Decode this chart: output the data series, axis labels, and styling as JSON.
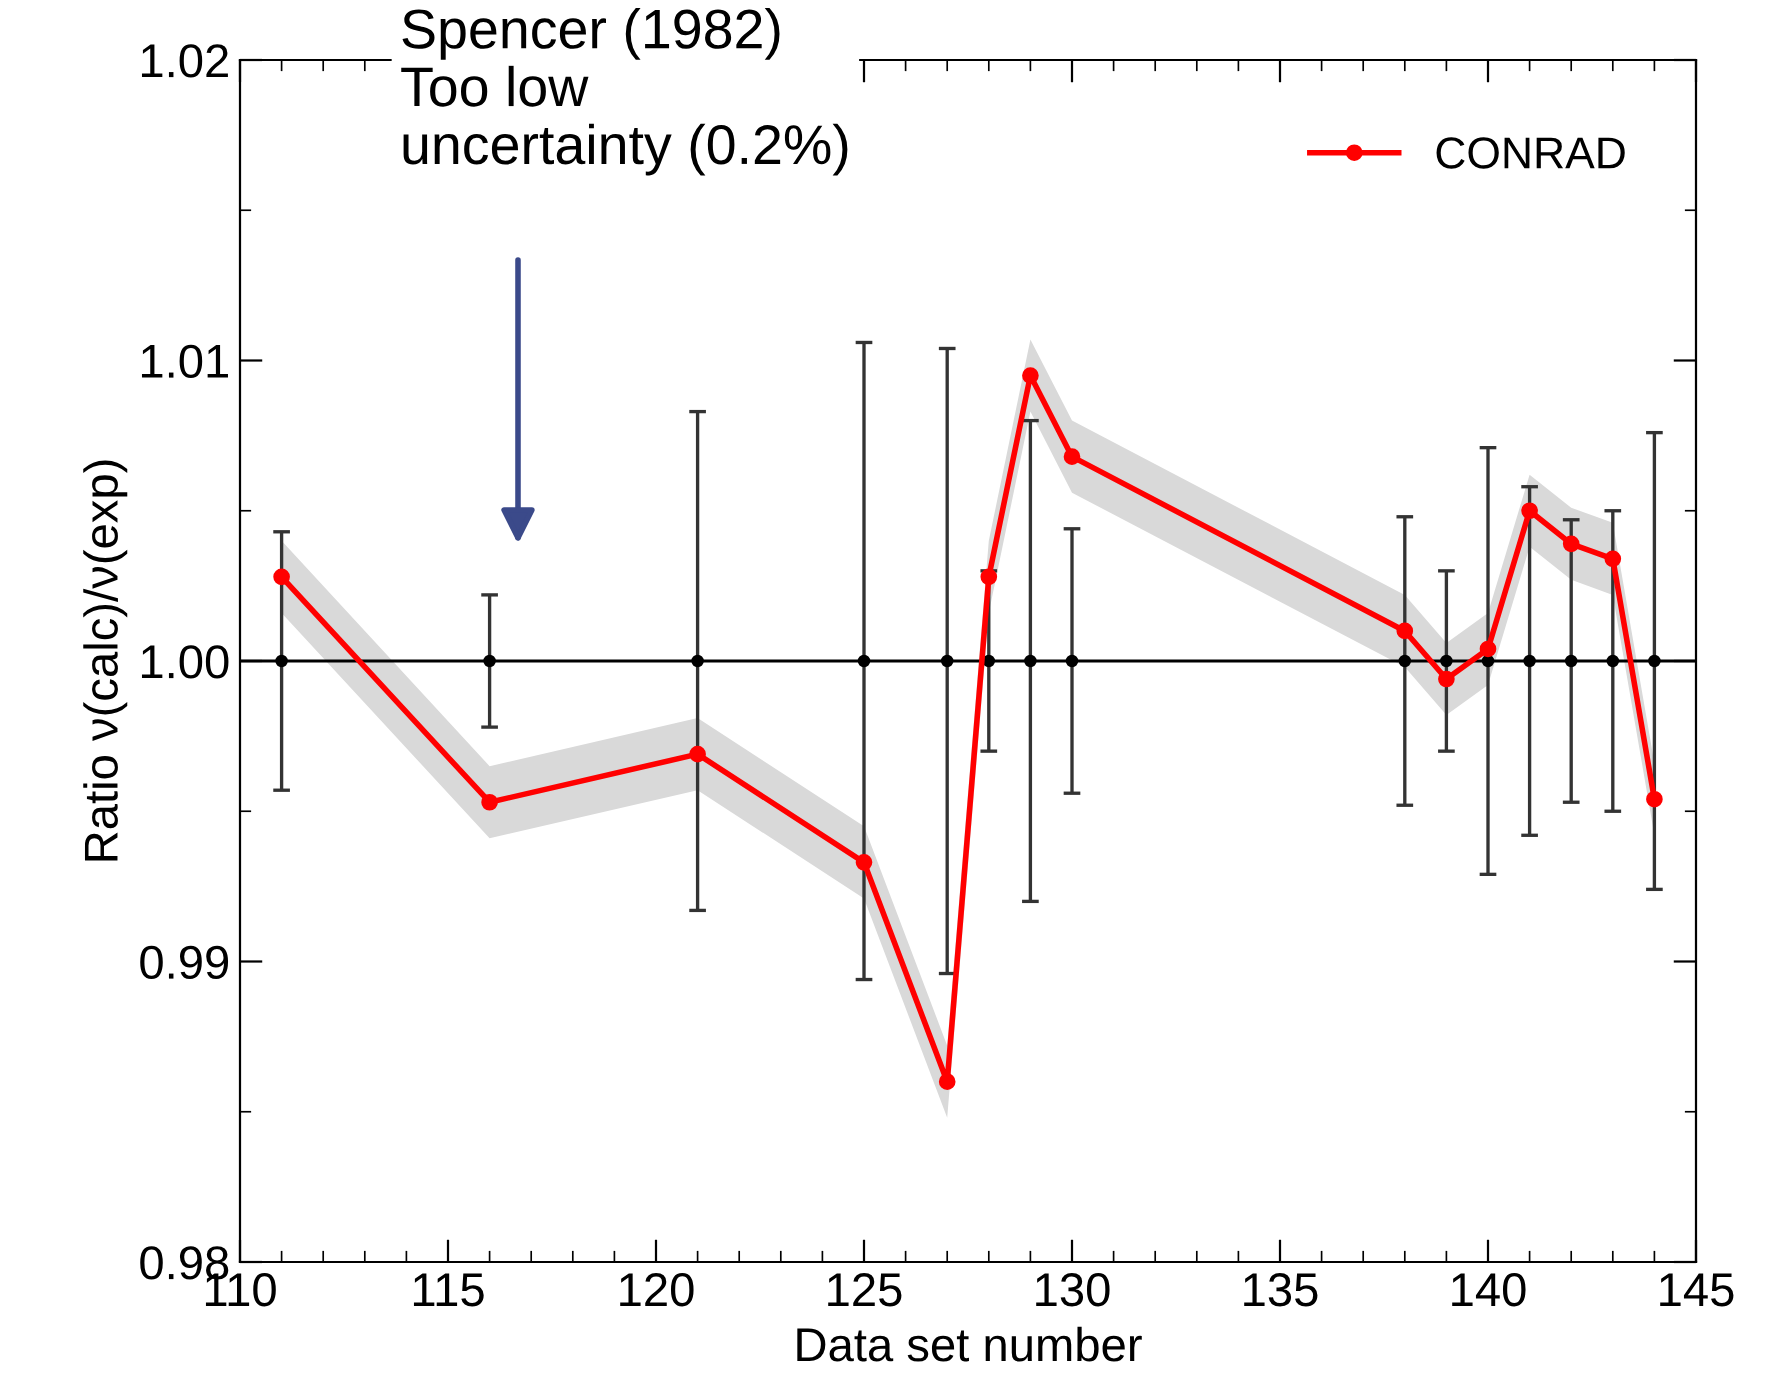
{
  "chart_data": {
    "type": "line",
    "xlabel": "Data set number",
    "ylabel": "Ratio ν(calc)/ν(exp)",
    "xlim": [
      110,
      145
    ],
    "xticks": [
      110,
      115,
      120,
      125,
      130,
      135,
      140,
      145
    ],
    "ylim": [
      0.98,
      1.02
    ],
    "yticks": [
      {
        "value": 0.98,
        "label": "0.98"
      },
      {
        "value": 0.99,
        "label": "0.99"
      },
      {
        "value": 1.0,
        "label": "1.00"
      },
      {
        "value": 1.01,
        "label": "1.01"
      },
      {
        "value": 1.02,
        "label": "1.02"
      }
    ],
    "grid": false,
    "legend": "top right",
    "marker": "circle",
    "line_style": "solid",
    "ref_lines": [
      {
        "axis": "y",
        "value": 1.0,
        "color": "#000000"
      }
    ],
    "series": [
      {
        "type": "scatter",
        "color": "#000000",
        "x": [
          111,
          116,
          121,
          125,
          127,
          128,
          129,
          130,
          138,
          139,
          140,
          141,
          142,
          143,
          144
        ],
        "values": [
          1,
          1,
          1,
          1,
          1,
          1,
          1,
          1,
          1,
          1,
          1,
          1,
          1,
          1,
          1
        ],
        "errors": [
          0.0043,
          0.0022,
          0.0083,
          0.0106,
          0.0104,
          0.003,
          0.008,
          0.0044,
          0.0048,
          0.003,
          0.0071,
          0.0058,
          0.0047,
          0.005,
          0.0076
        ]
      },
      {
        "name": "CONRAD",
        "color": "#ff0000",
        "x": [
          111,
          116,
          121,
          125,
          127,
          128,
          129,
          130,
          138,
          139,
          140,
          141,
          142,
          143,
          144
        ],
        "values": [
          1.0028,
          0.9953,
          0.9969,
          0.9933,
          0.986,
          1.0028,
          1.0095,
          1.0068,
          1.001,
          0.9994,
          1.0004,
          1.005,
          1.0039,
          1.0034,
          0.9954
        ],
        "lower": [
          1.0016,
          0.9941,
          0.9957,
          0.9921,
          0.9848,
          1.0016,
          1.0083,
          1.0056,
          0.9998,
          0.9982,
          0.9992,
          1.0038,
          1.0027,
          1.0022,
          0.9942
        ],
        "upper": [
          1.004,
          0.9965,
          0.9981,
          0.9945,
          0.9872,
          1.004,
          1.0107,
          1.008,
          1.0022,
          1.0006,
          1.0016,
          1.0062,
          1.0051,
          1.0046,
          0.9966
        ]
      }
    ],
    "annotations": [
      "Spencer (1982)\nToo low\nuncertainty (0.2%)"
    ]
  }
}
